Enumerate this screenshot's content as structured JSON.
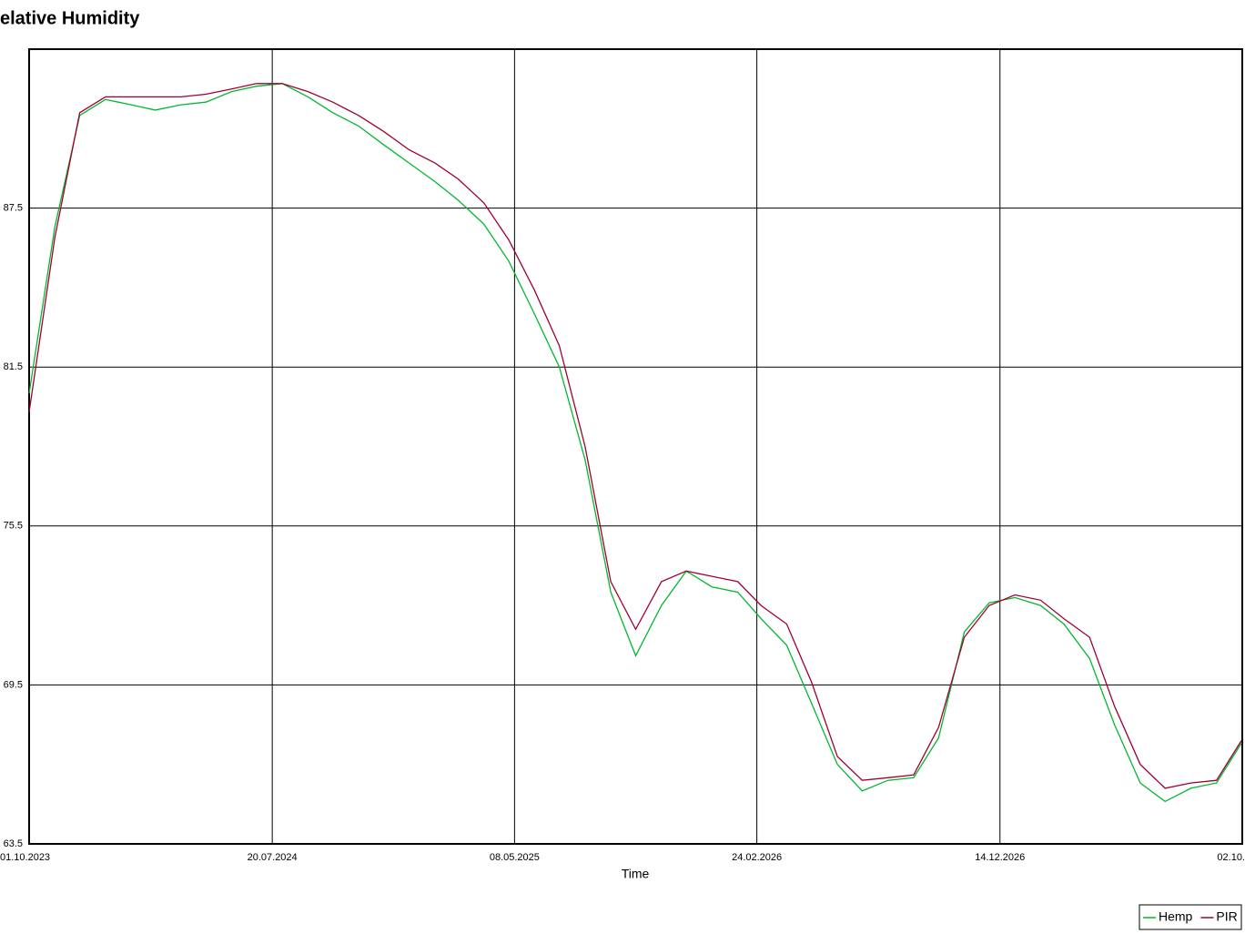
{
  "chart_data": {
    "type": "line",
    "title": "elative Humidity",
    "xlabel": "Time",
    "x": [
      "01.10.2023",
      "01.11.2023",
      "01.12.2023",
      "01.01.2024",
      "01.02.2024",
      "01.03.2024",
      "01.04.2024",
      "01.05.2024",
      "01.06.2024",
      "01.07.2024",
      "01.08.2024",
      "01.09.2024",
      "01.10.2024",
      "01.11.2024",
      "01.12.2024",
      "01.01.2025",
      "01.02.2025",
      "01.03.2025",
      "01.04.2025",
      "01.05.2025",
      "01.06.2025",
      "01.07.2025",
      "01.08.2025",
      "01.09.2025",
      "01.10.2025",
      "01.11.2025",
      "01.12.2025",
      "01.01.2026",
      "01.02.2026",
      "01.03.2026",
      "01.04.2026",
      "01.05.2026",
      "01.06.2026",
      "01.07.2026",
      "01.08.2026",
      "01.09.2026",
      "01.10.2026",
      "01.11.2026",
      "01.12.2026",
      "01.01.2027",
      "01.02.2027",
      "01.03.2027",
      "01.04.2027",
      "01.05.2027",
      "01.06.2027",
      "01.07.2027",
      "01.08.2027",
      "01.09.2027",
      "01.10.2027"
    ],
    "series": [
      {
        "name": "Hemp",
        "color": "#00b830",
        "values": [
          80.5,
          86.8,
          91.0,
          91.6,
          91.4,
          91.2,
          91.4,
          91.5,
          91.9,
          92.1,
          92.2,
          91.7,
          91.1,
          90.6,
          89.9,
          89.2,
          88.5,
          87.8,
          86.9,
          85.5,
          83.5,
          81.5,
          78.0,
          73.0,
          70.6,
          72.5,
          73.8,
          73.2,
          73.0,
          72.0,
          71.0,
          68.8,
          66.5,
          65.5,
          65.9,
          66.0,
          67.5,
          71.5,
          72.6,
          72.8,
          72.5,
          71.8,
          70.5,
          68.0,
          65.8,
          65.1,
          65.6,
          65.8,
          67.3
        ]
      },
      {
        "name": "PIR",
        "color": "#a00030",
        "values": [
          79.8,
          86.4,
          91.1,
          91.7,
          91.7,
          91.7,
          91.7,
          91.8,
          92.0,
          92.2,
          92.2,
          91.9,
          91.5,
          91.0,
          90.4,
          89.7,
          89.2,
          88.6,
          87.7,
          86.3,
          84.4,
          82.3,
          78.5,
          73.4,
          71.6,
          73.4,
          73.8,
          73.6,
          73.4,
          72.5,
          71.8,
          69.6,
          66.8,
          65.9,
          66.0,
          66.1,
          67.9,
          71.3,
          72.5,
          72.9,
          72.7,
          72.0,
          71.3,
          68.7,
          66.5,
          65.6,
          65.8,
          65.9,
          67.4
        ]
      }
    ],
    "xlim": [
      "01.10.2023",
      "02.10.2027"
    ],
    "xticks": [
      "01.10.2023",
      "20.07.2024",
      "08.05.2025",
      "24.02.2026",
      "14.12.2026",
      {
        "value": "02.10.2027",
        "label": "02.10."
      }
    ],
    "ylim": [
      63.5,
      93.5
    ],
    "yticks": [
      63.5,
      69.5,
      75.5,
      81.5,
      87.5
    ],
    "grid": true,
    "legend": "bottom-right"
  }
}
